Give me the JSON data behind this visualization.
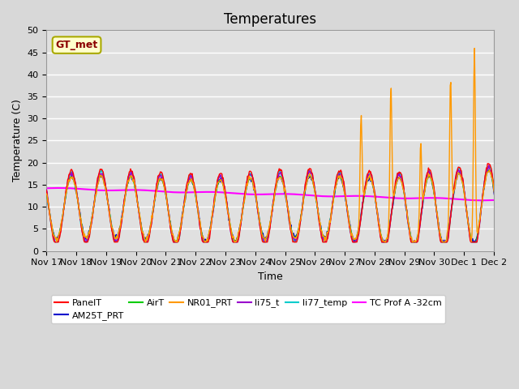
{
  "title": "Temperatures",
  "xlabel": "Time",
  "ylabel": "Temperature (C)",
  "ylim": [
    0,
    50
  ],
  "x_tick_positions": [
    0,
    1,
    2,
    3,
    4,
    5,
    6,
    7,
    8,
    9,
    10,
    11,
    12,
    13,
    14,
    15
  ],
  "x_tick_labels": [
    "Nov 17",
    "Nov 18",
    "Nov 19",
    "Nov 20",
    "Nov 21",
    "Nov 22",
    "Nov 23",
    "Nov 24",
    "Nov 25",
    "Nov 26",
    "Nov 27",
    "Nov 28",
    "Nov 29",
    "Nov 30",
    "Dec 1",
    "Dec 2"
  ],
  "annotation_text": "GT_met",
  "series_colors": {
    "PanelT": "#ff0000",
    "AM25T_PRT": "#0000cc",
    "AirT": "#00cc00",
    "NR01_PRT": "#ff9900",
    "li75_t": "#9900cc",
    "li77_temp": "#00cccc",
    "TC_Prof_A": "#ff00ff"
  },
  "series_labels": {
    "PanelT": "PanelT",
    "AM25T_PRT": "AM25T_PRT",
    "AirT": "AirT",
    "NR01_PRT": "NR01_PRT",
    "li75_t": "li75_t",
    "li77_temp": "li77_temp",
    "TC_Prof_A": "TC Prof A -32cm"
  },
  "bg_color": "#e0e0e0",
  "grid_color": "#ffffff",
  "title_fontsize": 12,
  "axis_fontsize": 9,
  "tick_fontsize": 8
}
